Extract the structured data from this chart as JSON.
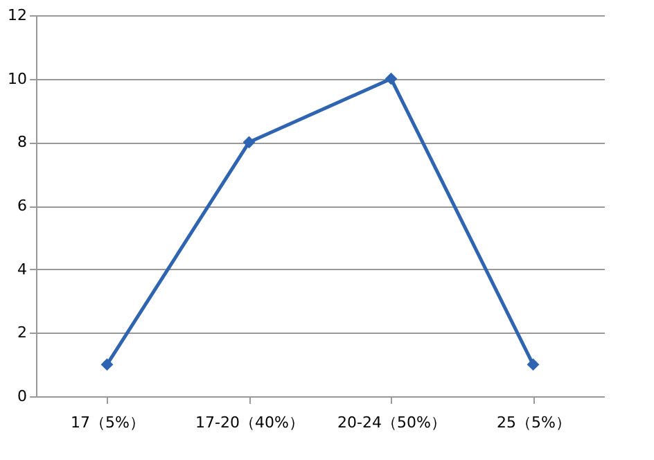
{
  "chart_data": {
    "type": "line",
    "categories": [
      "17（5%）",
      "17-20（40%）",
      "20-24（50%）",
      "25（5%）"
    ],
    "series": [
      {
        "color": "#2e64b0",
        "values": [
          1,
          8,
          10,
          1
        ]
      }
    ],
    "ylim": [
      0,
      12
    ],
    "yticks": [
      0,
      2,
      4,
      6,
      8,
      10,
      12
    ],
    "grid": "y",
    "marker": "diamond",
    "line_style": "solid"
  }
}
